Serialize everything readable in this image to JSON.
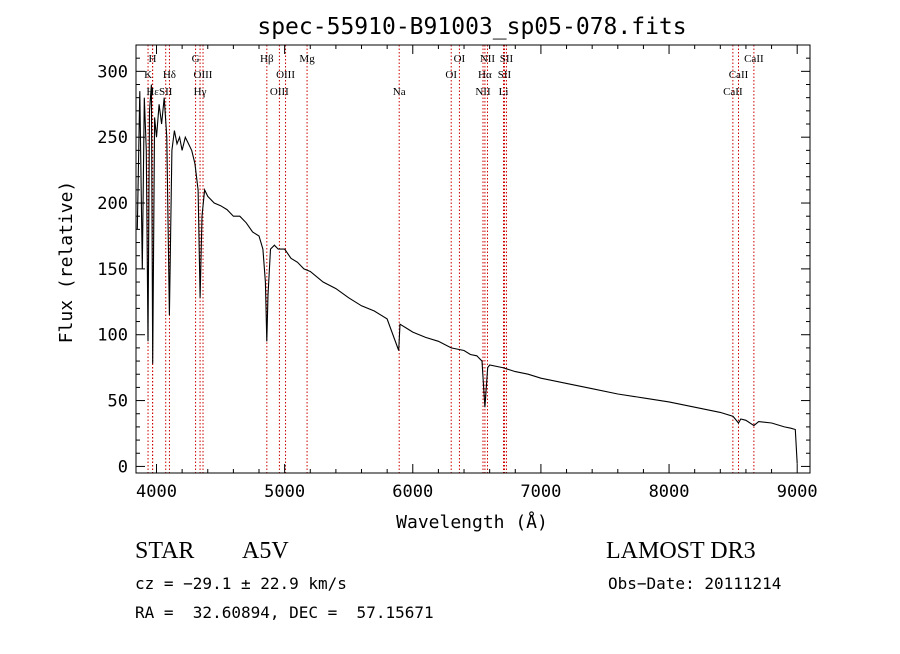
{
  "chart_data": {
    "type": "line",
    "title": "spec-55910-B91003_sp05-078.fits",
    "xlabel": "Wavelength (Å)",
    "ylabel": "Flux (relative)",
    "xlim": [
      3840,
      9100
    ],
    "ylim": [
      -5,
      320
    ],
    "xticks": [
      4000,
      5000,
      6000,
      7000,
      8000,
      9000
    ],
    "xtick_labels": [
      "4000",
      "5000",
      "6000",
      "7000",
      "8000",
      "9000"
    ],
    "yticks": [
      0,
      50,
      100,
      150,
      200,
      250,
      300
    ],
    "ytick_labels": [
      "0",
      "50",
      "100",
      "150",
      "200",
      "250",
      "300"
    ],
    "grid": false,
    "series": [
      {
        "name": "spectrum",
        "color": "#000000",
        "x": [
          3850,
          3870,
          3889,
          3905,
          3920,
          3934,
          3945,
          3960,
          3970,
          3985,
          4000,
          4020,
          4040,
          4060,
          4080,
          4101,
          4120,
          4140,
          4160,
          4180,
          4200,
          4225,
          4250,
          4275,
          4300,
          4325,
          4340,
          4355,
          4375,
          4400,
          4450,
          4500,
          4550,
          4600,
          4650,
          4700,
          4750,
          4800,
          4830,
          4850,
          4861,
          4870,
          4890,
          4920,
          4950,
          5000,
          5050,
          5100,
          5150,
          5200,
          5300,
          5400,
          5500,
          5600,
          5700,
          5800,
          5890,
          5900,
          5950,
          6000,
          6100,
          6200,
          6300,
          6400,
          6450,
          6500,
          6540,
          6563,
          6585,
          6600,
          6700,
          6800,
          6900,
          7000,
          7200,
          7400,
          7600,
          7800,
          8000,
          8200,
          8400,
          8500,
          8542,
          8560,
          8600,
          8662,
          8700,
          8800,
          8900,
          8950,
          8985,
          9000
        ],
        "y": [
          180,
          285,
          150,
          280,
          240,
          95,
          270,
          290,
          78,
          265,
          250,
          275,
          260,
          280,
          250,
          115,
          240,
          255,
          245,
          250,
          240,
          250,
          245,
          240,
          230,
          210,
          128,
          190,
          210,
          205,
          200,
          198,
          195,
          190,
          190,
          185,
          178,
          175,
          165,
          140,
          95,
          130,
          165,
          168,
          165,
          165,
          158,
          155,
          150,
          148,
          140,
          135,
          128,
          122,
          118,
          112,
          88,
          108,
          105,
          102,
          98,
          95,
          90,
          88,
          85,
          84,
          80,
          45,
          75,
          77,
          75,
          72,
          70,
          67,
          63,
          59,
          55,
          52,
          49,
          45,
          41,
          38,
          33,
          36,
          35,
          31,
          34,
          33,
          30,
          29,
          28,
          2
        ]
      }
    ],
    "lines": [
      {
        "label": "K",
        "x": 3934,
        "row": 2
      },
      {
        "label": "H",
        "x": 3969,
        "row": 1
      },
      {
        "label": "Hε",
        "x": 3970,
        "row": 3
      },
      {
        "label": "SII",
        "x": 4072,
        "row": 3
      },
      {
        "label": "Hδ",
        "x": 4101,
        "row": 2
      },
      {
        "label": "G",
        "x": 4305,
        "row": 1
      },
      {
        "label": "Hγ",
        "x": 4340,
        "row": 3
      },
      {
        "label": "OIII",
        "x": 4363,
        "row": 2
      },
      {
        "label": "Hβ",
        "x": 4861,
        "row": 1
      },
      {
        "label": "OIII",
        "x": 4959,
        "row": 3
      },
      {
        "label": "OIII",
        "x": 5007,
        "row": 2
      },
      {
        "label": "Mg",
        "x": 5175,
        "row": 1
      },
      {
        "label": "Na",
        "x": 5894,
        "row": 3
      },
      {
        "label": "OI",
        "x": 6300,
        "row": 2
      },
      {
        "label": "OI",
        "x": 6364,
        "row": 1
      },
      {
        "label": "NII",
        "x": 6548,
        "row": 3
      },
      {
        "label": "NII",
        "x": 6583,
        "row": 1
      },
      {
        "label": "Hα",
        "x": 6563,
        "row": 2
      },
      {
        "label": "SII",
        "x": 6716,
        "row": 2
      },
      {
        "label": "SII",
        "x": 6731,
        "row": 1
      },
      {
        "label": "Li",
        "x": 6708,
        "row": 3
      },
      {
        "label": "CaII",
        "x": 8498,
        "row": 3
      },
      {
        "label": "CaII",
        "x": 8542,
        "row": 2
      },
      {
        "label": "CaII",
        "x": 8662,
        "row": 1
      }
    ],
    "marker_color": "#cc0000"
  },
  "info": {
    "class": "STAR",
    "subclass": "A5V",
    "survey": "LAMOST DR3",
    "cz": "cz = −29.1 ± 22.9 km/s",
    "obs_date": "Obs−Date: 20111214",
    "radec": "RA =  32.60894, DEC =  57.15671"
  }
}
